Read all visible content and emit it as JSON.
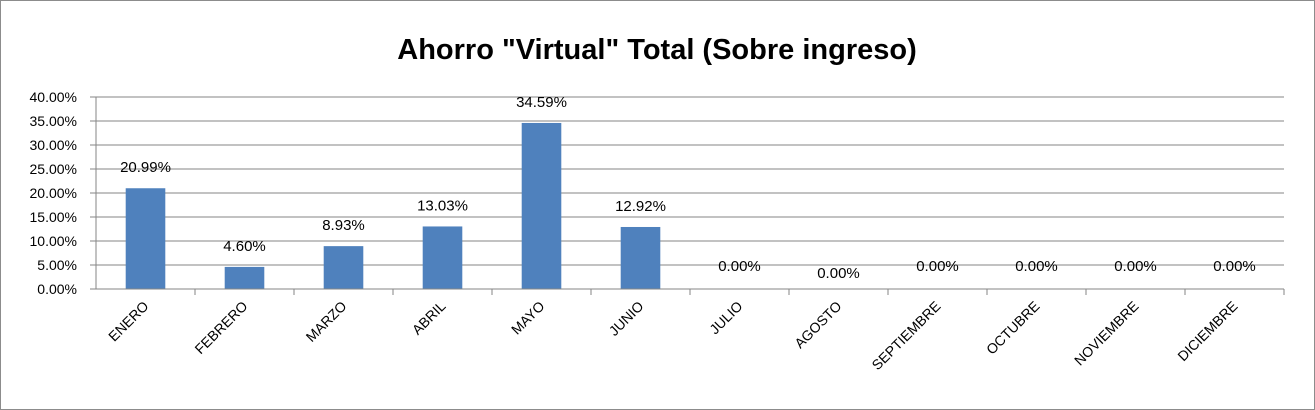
{
  "chart_data": {
    "type": "bar",
    "title": "Ahorro \"Virtual\" Total (Sobre ingreso)",
    "xlabel": "",
    "ylabel": "",
    "categories": [
      "ENERO",
      "FEBRERO",
      "MARZO",
      "ABRIL",
      "MAYO",
      "JUNIO",
      "JULIO",
      "AGOSTO",
      "SEPTIEMBRE",
      "OCTUBRE",
      "NOVIEMBRE",
      "DICIEMBRE"
    ],
    "values": [
      20.99,
      4.6,
      8.93,
      13.03,
      34.59,
      12.92,
      0.0,
      0.0,
      0.0,
      0.0,
      0.0,
      0.0
    ],
    "data_labels": [
      "20.99%",
      "4.60%",
      "8.93%",
      "13.03%",
      "34.59%",
      "12.92%",
      "0.00%",
      "0.00%",
      "0.00%",
      "0.00%",
      "0.00%",
      "0.00%"
    ],
    "ylim": [
      0,
      40
    ],
    "y_ticks": [
      0,
      5,
      10,
      15,
      20,
      25,
      30,
      35,
      40
    ],
    "y_tick_labels": [
      "0.00%",
      "5.00%",
      "10.00%",
      "15.00%",
      "20.00%",
      "25.00%",
      "30.00%",
      "35.00%",
      "40.00%"
    ],
    "grid": true,
    "legend": "none",
    "bar_color": "#4f81bd",
    "grid_color": "#868686"
  }
}
